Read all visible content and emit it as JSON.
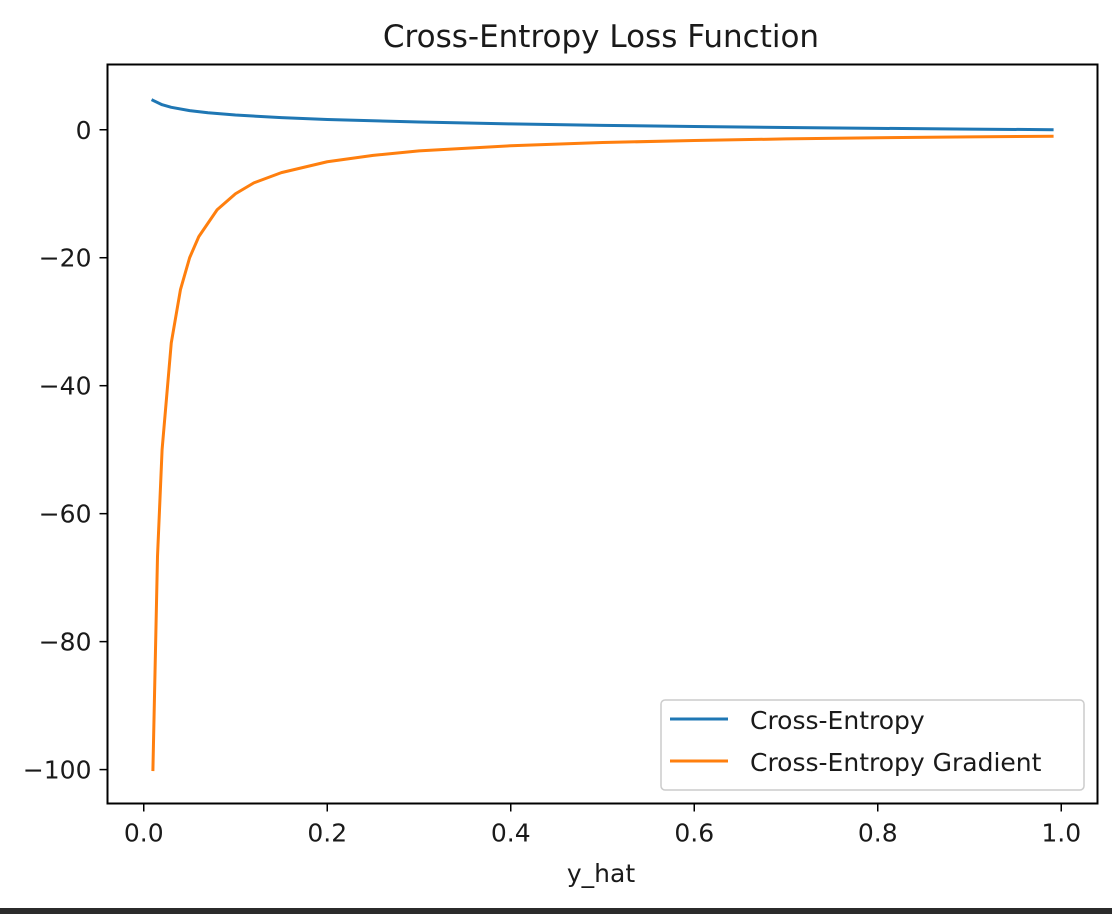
{
  "chart_data": {
    "type": "line",
    "title": "Cross-Entropy Loss Function",
    "xlabel": "y_hat",
    "ylabel": "",
    "xlim": [
      -0.0395,
      1.0395
    ],
    "ylim": [
      -105.3,
      10.2
    ],
    "xticks": [
      0.0,
      0.2,
      0.4,
      0.6,
      0.8,
      1.0
    ],
    "xtick_labels": [
      "0.0",
      "0.2",
      "0.4",
      "0.6",
      "0.8",
      "1.0"
    ],
    "yticks": [
      0,
      -20,
      -40,
      -60,
      -80,
      -100
    ],
    "ytick_labels": [
      "0",
      "−20",
      "−40",
      "−60",
      "−80",
      "−100"
    ],
    "grid": false,
    "legend_position": "lower-right",
    "series": [
      {
        "name": "Cross-Entropy",
        "color": "#1f77b4",
        "x": [
          0.01,
          0.02,
          0.03,
          0.05,
          0.07,
          0.1,
          0.15,
          0.2,
          0.3,
          0.4,
          0.5,
          0.6,
          0.7,
          0.8,
          0.9,
          0.99
        ],
        "y": [
          4.605,
          3.912,
          3.507,
          2.996,
          2.659,
          2.303,
          1.897,
          1.609,
          1.204,
          0.916,
          0.693,
          0.511,
          0.357,
          0.223,
          0.105,
          0.01
        ]
      },
      {
        "name": "Cross-Entropy Gradient",
        "color": "#ff7f0e",
        "x": [
          0.01,
          0.015,
          0.02,
          0.03,
          0.04,
          0.05,
          0.06,
          0.08,
          0.1,
          0.12,
          0.15,
          0.2,
          0.25,
          0.3,
          0.4,
          0.5,
          0.6,
          0.7,
          0.8,
          0.9,
          0.99
        ],
        "y": [
          -100.0,
          -66.7,
          -50.0,
          -33.3,
          -25.0,
          -20.0,
          -16.7,
          -12.5,
          -10.0,
          -8.3,
          -6.7,
          -5.0,
          -4.0,
          -3.3,
          -2.5,
          -2.0,
          -1.67,
          -1.43,
          -1.25,
          -1.11,
          -1.01
        ]
      }
    ]
  }
}
